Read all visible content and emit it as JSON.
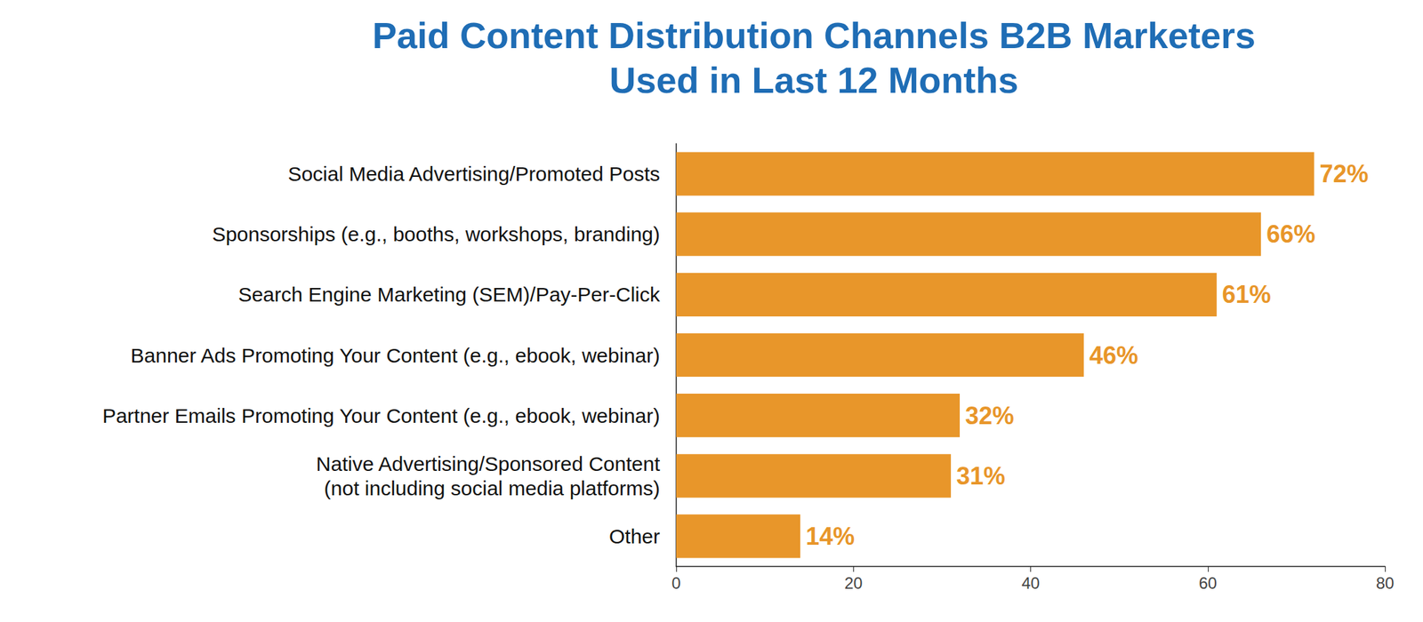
{
  "chart_data": {
    "type": "bar",
    "orientation": "horizontal",
    "title": "Paid Content Distribution Channels B2B Marketers\nUsed in Last 12 Months",
    "categories": [
      "Social Media Advertising/Promoted Posts",
      "Sponsorships (e.g., booths, workshops, branding)",
      "Search Engine Marketing (SEM)/Pay-Per-Click",
      "Banner Ads Promoting Your Content (e.g., ebook, webinar)",
      "Partner Emails Promoting Your Content (e.g., ebook, webinar)",
      "Native Advertising/Sponsored Content\n(not including social media platforms)",
      "Other"
    ],
    "values": [
      72,
      66,
      61,
      46,
      32,
      31,
      14
    ],
    "value_labels": [
      "72%",
      "66%",
      "61%",
      "46%",
      "32%",
      "31%",
      "14%"
    ],
    "color": "#e8962a",
    "xlim": [
      0,
      80
    ],
    "xticks": [
      0,
      20,
      40,
      60,
      80
    ],
    "grid": false,
    "data_labels": true
  }
}
